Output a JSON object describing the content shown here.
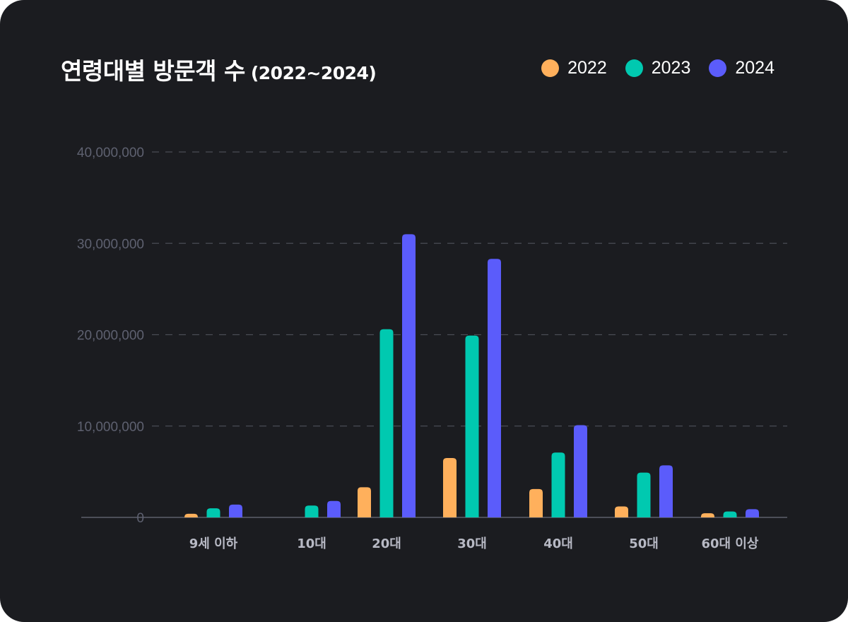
{
  "header": {
    "title": "연령대별 방문객 수",
    "subtitle": "(2022~2024)"
  },
  "chart_data": {
    "type": "bar",
    "title": "연령대별 방문객 수 (2022~2024)",
    "categories": [
      "9세 이하",
      "10대",
      "20대",
      "30대",
      "40대",
      "50대",
      "60대 이상"
    ],
    "series": [
      {
        "name": "2022",
        "color": "#ffb05c",
        "values": [
          400000,
          0,
          3300000,
          6500000,
          3100000,
          1200000,
          450000
        ]
      },
      {
        "name": "2023",
        "color": "#00c9b0",
        "values": [
          1000000,
          1300000,
          20600000,
          19900000,
          7100000,
          4900000,
          650000
        ]
      },
      {
        "name": "2024",
        "color": "#5b5cfb",
        "values": [
          1400000,
          1800000,
          31000000,
          28300000,
          10100000,
          5700000,
          900000
        ]
      }
    ],
    "y_ticks": [
      "0",
      "10,000,000",
      "20,000,000",
      "30,000,000",
      "40,000,000"
    ],
    "ylim": [
      0,
      40000000
    ],
    "grid": true,
    "legend": "top-right"
  }
}
